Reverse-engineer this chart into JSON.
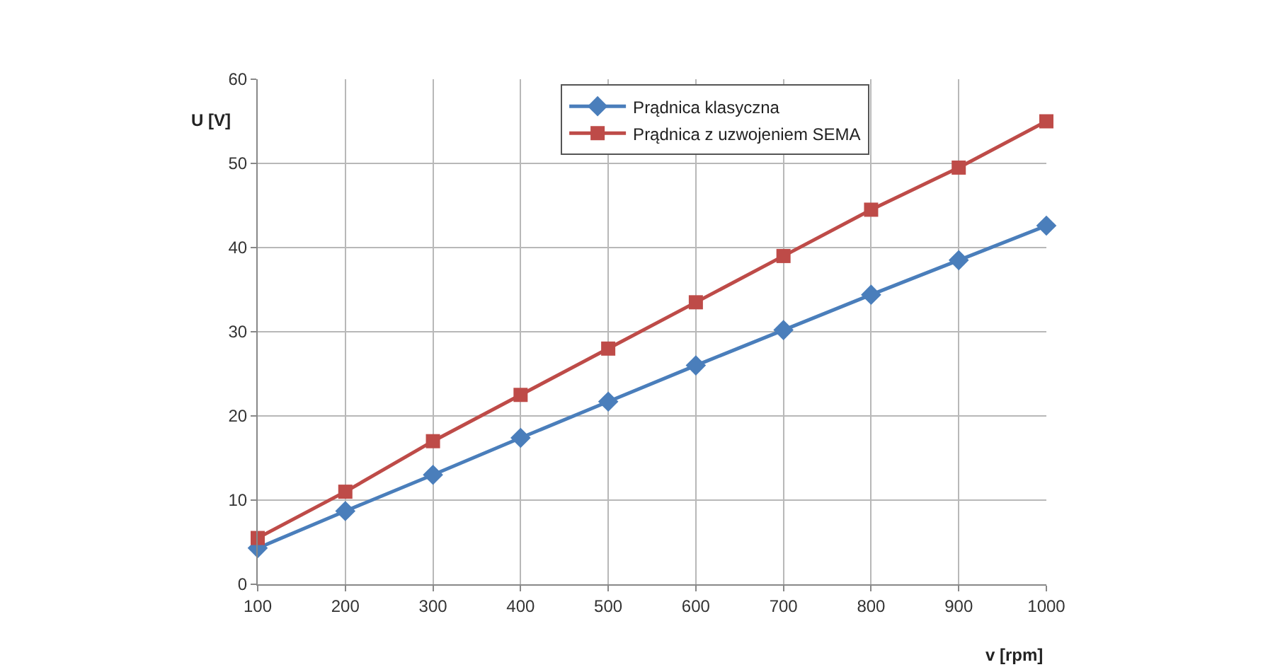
{
  "chart_data": {
    "type": "line",
    "xlabel": "v [rpm]",
    "ylabel": "U [V]",
    "x": [
      100,
      200,
      300,
      400,
      500,
      600,
      700,
      800,
      900,
      1000
    ],
    "series": [
      {
        "name": "Prądnica klasyczna",
        "color": "#4a7ebb",
        "marker": "diamond",
        "values": [
          4.3,
          8.7,
          13,
          17.4,
          21.7,
          26,
          30.2,
          34.4,
          38.5,
          42.6
        ]
      },
      {
        "name": "Prądnica z uzwojeniem SEMA",
        "color": "#be4b48",
        "marker": "square",
        "values": [
          5.5,
          11,
          17,
          22.5,
          28,
          33.5,
          39,
          44.5,
          49.5,
          55
        ]
      }
    ],
    "xlim": [
      100,
      1000
    ],
    "xticks": [
      100,
      200,
      300,
      400,
      500,
      600,
      700,
      800,
      900,
      1000
    ],
    "ylim": [
      0,
      60
    ],
    "yticks": [
      0,
      10,
      20,
      30,
      40,
      50,
      60
    ],
    "grid": true,
    "legend": "top",
    "line_style": "solid"
  }
}
